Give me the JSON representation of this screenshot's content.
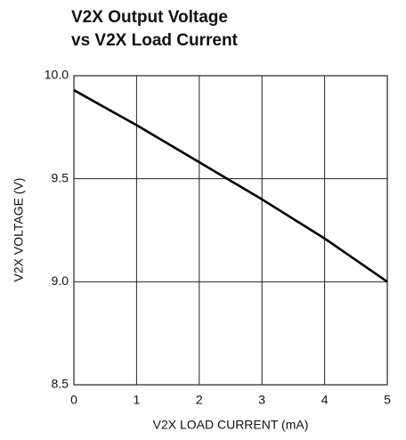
{
  "chart_data": {
    "type": "line",
    "title": [
      "V2X Output Voltage",
      "vs V2X Load Current"
    ],
    "xlabel": "V2X LOAD CURRENT (mA)",
    "ylabel": "V2X VOLTAGE (V)",
    "x": [
      0,
      1,
      2,
      3,
      4,
      5
    ],
    "series": [
      {
        "name": null,
        "color": "#000000",
        "values": [
          9.93,
          9.76,
          9.58,
          9.4,
          9.21,
          9.0
        ]
      }
    ],
    "xlim": [
      0,
      5
    ],
    "xticks": [
      0,
      1,
      2,
      3,
      4,
      5
    ],
    "ylim": [
      8.5,
      10.0
    ],
    "yticks": [
      {
        "value": 8.5,
        "label": "8.5"
      },
      {
        "value": 9.0,
        "label": "9.0"
      },
      {
        "value": 9.5,
        "label": "9.5"
      },
      {
        "value": 10.0,
        "label": "10.0"
      }
    ],
    "grid": true
  }
}
